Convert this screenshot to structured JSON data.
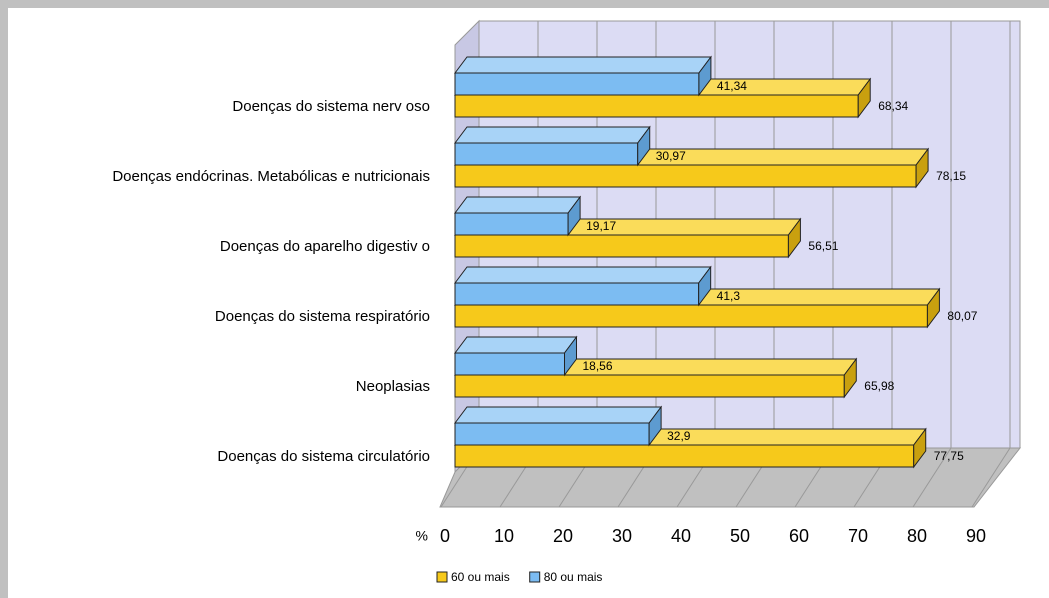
{
  "chart_data": {
    "type": "bar3d_horizontal",
    "categories": [
      "Doenças do sistema nerv oso",
      "Doenças endócrinas. Metabólicas e nutricionais",
      "Doenças do aparelho digestiv o",
      "Doenças do sistema respiratório",
      "Neoplasias",
      "Doenças do sistema circulatório"
    ],
    "series": [
      {
        "name": "60 ou mais",
        "color": "#f6c91b",
        "values": [
          68.34,
          78.15,
          56.51,
          80.07,
          65.98,
          77.75
        ],
        "value_labels": [
          "68,34",
          "78,15",
          "56,51",
          "80,07",
          "65,98",
          "77,75"
        ]
      },
      {
        "name": "80 ou mais",
        "color": "#7cbcf2",
        "values": [
          41.34,
          30.97,
          19.17,
          41.3,
          18.56,
          32.9
        ],
        "value_labels": [
          "41,34",
          "30,97",
          "19,17",
          "41,3",
          "18,56",
          "32,9"
        ]
      }
    ],
    "x_label": "%",
    "xlim": [
      0,
      90
    ],
    "xticks": [
      0,
      10,
      20,
      30,
      40,
      50,
      60,
      70,
      80,
      90
    ],
    "grid": true
  }
}
